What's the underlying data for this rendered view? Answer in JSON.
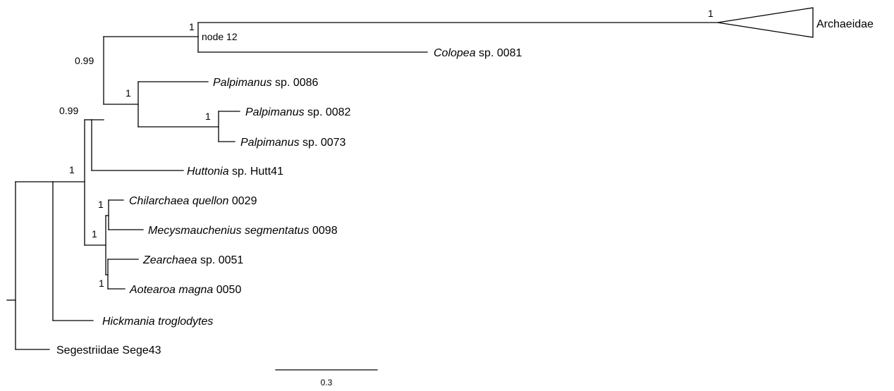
{
  "colors": {
    "line": "#000000",
    "background": "#ffffff"
  },
  "taxa": {
    "archaeidae": "Archaeidae",
    "colopea": {
      "genus": "Colopea",
      "rest": " sp. 0081"
    },
    "palp0086": {
      "genus": "Palpimanus",
      "rest": " sp. 0086"
    },
    "palp0082": {
      "genus": "Palpimanus",
      "rest": " sp. 0082"
    },
    "palp0073": {
      "genus": "Palpimanus",
      "rest": " sp. 0073"
    },
    "huttonia": {
      "genus": "Huttonia",
      "rest": " sp. Hutt41"
    },
    "chilarchaea": {
      "genus": "Chilarchaea quellon",
      "rest": " 0029"
    },
    "mecysmauchenius": {
      "genus": "Mecysmauchenius segmentatus",
      "rest": " 0098"
    },
    "zearchaea": {
      "genus": "Zearchaea",
      "rest": " sp. 0051"
    },
    "aotearoa": {
      "genus": "Aotearoa magna",
      "rest": " 0050"
    },
    "hickmania": {
      "genus": "Hickmania troglodytes",
      "rest": ""
    },
    "segestriidae": "Segestriidae Sege43"
  },
  "support": {
    "archaeidae_clade": "1",
    "node12": "1",
    "node12_label": "node 12",
    "palpimanoid": "0.99",
    "palpimanus": "1",
    "palp_pair": "1",
    "ingroup": "0.99",
    "mecys_group": "1",
    "chil_mecys": "1",
    "zear_aote": "1",
    "hick_group": "1"
  },
  "scale_bar": {
    "label": "0.3"
  }
}
